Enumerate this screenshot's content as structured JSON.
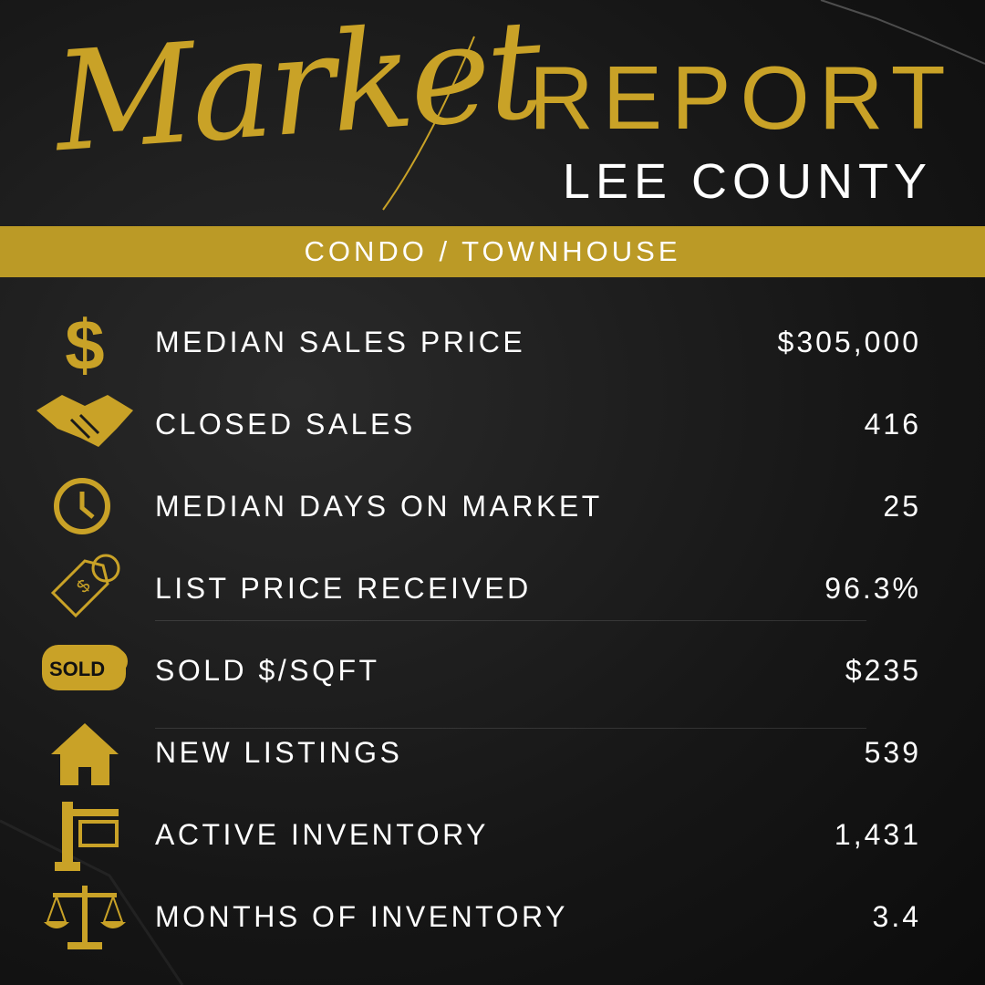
{
  "header": {
    "script_title": "Market",
    "title": "REPORT",
    "subtitle": "LEE COUNTY",
    "banner": "CONDO / TOWNHOUSE"
  },
  "sold_badge": "SOLD",
  "rows": [
    {
      "label": "MEDIAN SALES PRICE",
      "value": "$305,000"
    },
    {
      "label": "CLOSED SALES",
      "value": "416"
    },
    {
      "label": "MEDIAN DAYS ON MARKET",
      "value": "25"
    },
    {
      "label": "LIST PRICE RECEIVED",
      "value": "96.3%"
    },
    {
      "label": "SOLD $/SQFT",
      "value": "$235"
    },
    {
      "label": "NEW LISTINGS",
      "value": "539"
    },
    {
      "label": "ACTIVE INVENTORY",
      "value": "1,431"
    },
    {
      "label": "MONTHS OF INVENTORY",
      "value": "3.4"
    }
  ]
}
